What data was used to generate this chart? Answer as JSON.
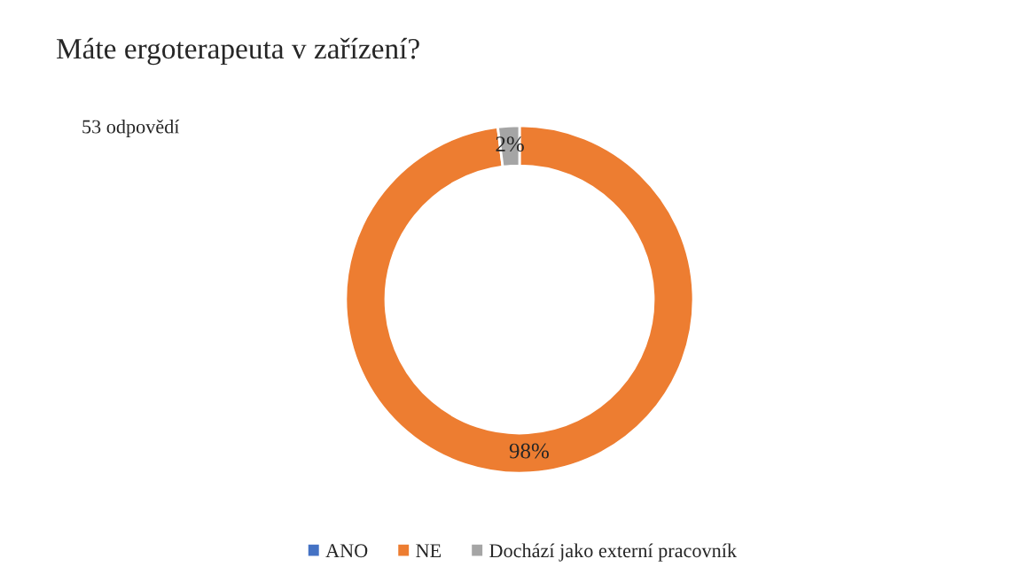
{
  "chart_data": {
    "type": "donut",
    "title": "Máte ergoterapeuta v zařízení?",
    "categories": [
      "ANO",
      "NE",
      "Dochází jako externí pracovník"
    ],
    "values": [
      0,
      98,
      2
    ],
    "colors": [
      "#4472c4",
      "#ed7d31",
      "#a5a5a5"
    ],
    "value_labels": [
      null,
      "98%",
      "2%"
    ],
    "annotations": [
      "53 odpovědí"
    ],
    "legend": "bottom"
  }
}
